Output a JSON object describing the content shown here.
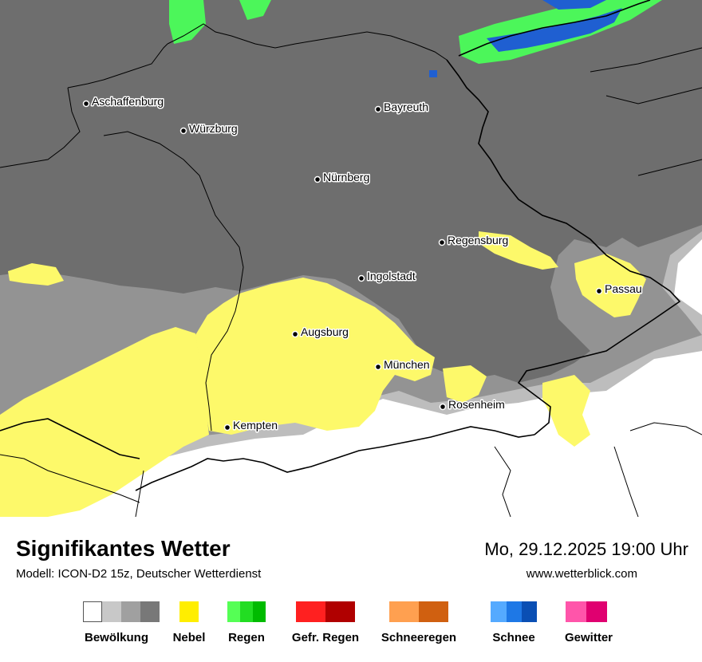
{
  "header": {
    "title": "Signifikantes Wetter",
    "model": "Modell: ICON-D2 15z, Deutscher Wetterdienst",
    "datetime": "Mo, 29.12.2025 19:00 Uhr",
    "website": "www.wetterblick.com"
  },
  "map": {
    "cities": [
      {
        "name": "Aschaffenburg"
      },
      {
        "name": "Würzburg"
      },
      {
        "name": "Bayreuth"
      },
      {
        "name": "Nürnberg"
      },
      {
        "name": "Regensburg"
      },
      {
        "name": "Ingolstadt"
      },
      {
        "name": "Passau"
      },
      {
        "name": "Augsburg"
      },
      {
        "name": "München"
      },
      {
        "name": "Rosenheim"
      },
      {
        "name": "Kempten"
      }
    ],
    "colors": {
      "overcast": "#6e6e6e",
      "cloud_mid": "#939393",
      "cloud_light": "#bdbdbd",
      "clear": "#ffffff",
      "fog": "#fdf96a",
      "rain": "#4cf65a",
      "snow": "#1f5fd1",
      "border": "#000000"
    }
  },
  "legend": [
    {
      "label": "Bewölkung",
      "colors": [
        "#ffffff",
        "#c8c8c8",
        "#a0a0a0",
        "#787878"
      ]
    },
    {
      "label": "Nebel",
      "colors": [
        "#ffee00"
      ]
    },
    {
      "label": "Regen",
      "colors": [
        "#55ff55",
        "#22dd22",
        "#00bb00"
      ]
    },
    {
      "label": "Gefr. Regen",
      "colors": [
        "#ff2020",
        "#b00000"
      ]
    },
    {
      "label": "Schneeregen",
      "colors": [
        "#ffa050",
        "#d06010"
      ]
    },
    {
      "label": "Schnee",
      "colors": [
        "#55aaff",
        "#1e78e6",
        "#0a4fb4"
      ]
    },
    {
      "label": "Gewitter",
      "colors": [
        "#ff55aa",
        "#e00070"
      ]
    }
  ]
}
